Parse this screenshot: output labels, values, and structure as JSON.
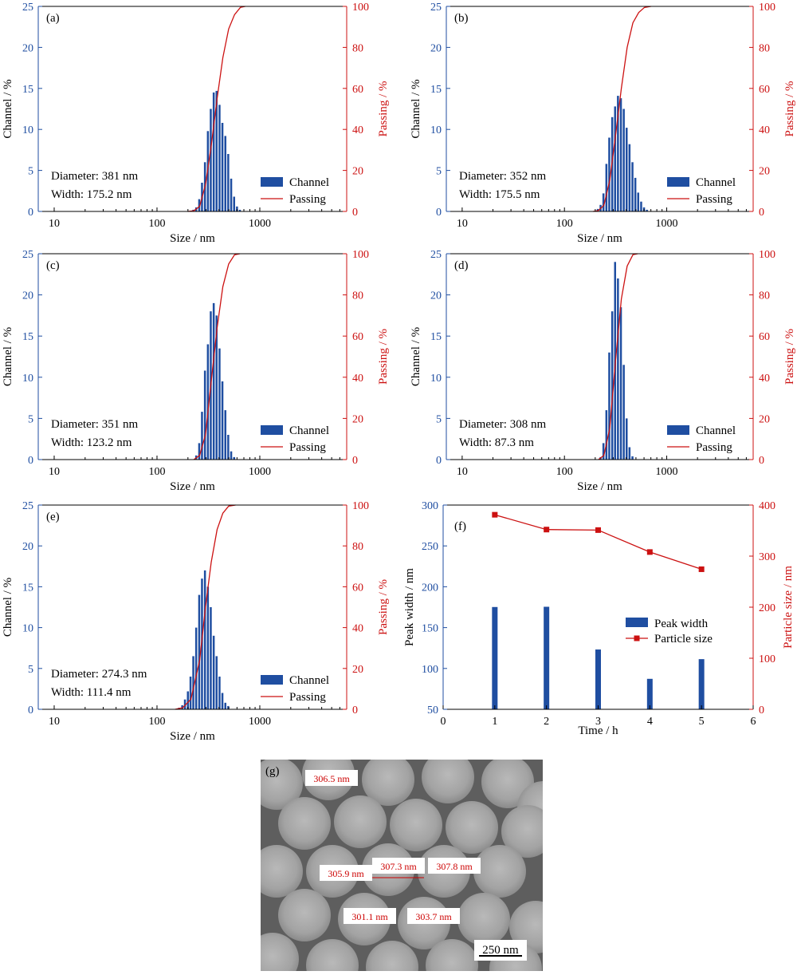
{
  "colors": {
    "channel": "#1f4ea1",
    "passing": "#cc1111",
    "axis_left": "#1f4ea1",
    "axis_right": "#cc1111"
  },
  "chart_data": [
    {
      "type": "bar+line",
      "panel_label": "(a)",
      "x_scale": "log",
      "xlabel": "Size / nm",
      "ylabel_left": "Channel / %",
      "ylabel_right": "Passing / %",
      "xticks": [
        "10",
        "100",
        "1000"
      ],
      "ylim_left": [
        0,
        25
      ],
      "yticks_left": [
        "0",
        "5",
        "10",
        "15",
        "20",
        "25"
      ],
      "ylim_right": [
        0,
        100
      ],
      "yticks_right": [
        "0",
        "20",
        "40",
        "60",
        "80",
        "100"
      ],
      "annotations": [
        "Diameter: 381 nm",
        "Width: 175.2 nm"
      ],
      "legend": [
        "Channel",
        "Passing"
      ],
      "channel": {
        "sizes": [
          228,
          243,
          260,
          277,
          296,
          316,
          337,
          360,
          384,
          410,
          437,
          467,
          498,
          532,
          568,
          606,
          647
        ],
        "values": [
          0.2,
          0.5,
          1.5,
          3.5,
          6.0,
          9.8,
          12.5,
          14.5,
          14.7,
          13.0,
          10.8,
          9.2,
          7.0,
          4.0,
          1.8,
          0.6,
          0.2
        ]
      },
      "passing": {
        "sizes": [
          200,
          228,
          260,
          296,
          337,
          384,
          437,
          498,
          568,
          647,
          720
        ],
        "values": [
          0,
          0.3,
          2.5,
          13,
          32,
          55,
          75,
          89,
          96,
          99.5,
          100
        ]
      }
    },
    {
      "type": "bar+line",
      "panel_label": "(b)",
      "x_scale": "log",
      "xlabel": "Size / nm",
      "ylabel_left": "Channel / %",
      "ylabel_right": "Passing / %",
      "xticks": [
        "10",
        "100",
        "1000"
      ],
      "ylim_left": [
        0,
        25
      ],
      "yticks_left": [
        "0",
        "5",
        "10",
        "15",
        "20",
        "25"
      ],
      "ylim_right": [
        0,
        100
      ],
      "yticks_right": [
        "0",
        "20",
        "40",
        "60",
        "80",
        "100"
      ],
      "annotations": [
        "Diameter: 352 nm",
        "Width: 175.5 nm"
      ],
      "legend": [
        "Channel",
        "Passing"
      ],
      "channel": {
        "sizes": [
          214,
          228,
          243,
          260,
          277,
          296,
          316,
          337,
          360,
          384,
          410,
          437,
          467,
          498,
          532,
          568,
          606,
          647
        ],
        "values": [
          0.3,
          0.8,
          2.2,
          5.8,
          9.0,
          11.5,
          12.8,
          14.1,
          13.8,
          12.5,
          10.2,
          8.2,
          6.0,
          4.1,
          2.3,
          1.2,
          0.5,
          0.2
        ]
      },
      "passing": {
        "sizes": [
          190,
          214,
          243,
          277,
          316,
          360,
          410,
          467,
          532,
          606,
          700
        ],
        "values": [
          0,
          0.4,
          3,
          15,
          37,
          60,
          80,
          92,
          97,
          99.5,
          100
        ]
      }
    },
    {
      "type": "bar+line",
      "panel_label": "(c)",
      "x_scale": "log",
      "xlabel": "Size / nm",
      "ylabel_left": "Channel / %",
      "ylabel_right": "Passing / %",
      "xticks": [
        "10",
        "100",
        "1000"
      ],
      "ylim_left": [
        0,
        25
      ],
      "yticks_left": [
        "0",
        "5",
        "10",
        "15",
        "20",
        "25"
      ],
      "ylim_right": [
        0,
        100
      ],
      "yticks_right": [
        "0",
        "20",
        "40",
        "60",
        "80",
        "100"
      ],
      "annotations": [
        "Diameter: 351 nm",
        "Width: 123.2 nm"
      ],
      "legend": [
        "Channel",
        "Passing"
      ],
      "channel": {
        "sizes": [
          243,
          260,
          277,
          296,
          316,
          337,
          360,
          384,
          410,
          437,
          467,
          498,
          532,
          568
        ],
        "values": [
          0.5,
          2.0,
          5.8,
          10.8,
          14.0,
          18.0,
          19.0,
          17.5,
          13.5,
          9.5,
          6.0,
          3.0,
          1.0,
          0.3
        ]
      },
      "passing": {
        "sizes": [
          228,
          260,
          296,
          337,
          384,
          437,
          498,
          568,
          640
        ],
        "values": [
          0,
          2,
          12,
          38,
          64,
          84,
          95,
          99.5,
          100
        ]
      }
    },
    {
      "type": "bar+line",
      "panel_label": "(d)",
      "x_scale": "log",
      "xlabel": "Size / nm",
      "ylabel_left": "Channel / %",
      "ylabel_right": "Passing / %",
      "xticks": [
        "10",
        "100",
        "1000"
      ],
      "ylim_left": [
        0,
        25
      ],
      "yticks_left": [
        "0",
        "5",
        "10",
        "15",
        "20",
        "25"
      ],
      "ylim_right": [
        0,
        100
      ],
      "yticks_right": [
        "0",
        "20",
        "40",
        "60",
        "80",
        "100"
      ],
      "annotations": [
        "Diameter: 308 nm",
        "Width: 87.3 nm"
      ],
      "legend": [
        "Channel",
        "Passing"
      ],
      "channel": {
        "sizes": [
          228,
          243,
          260,
          277,
          296,
          316,
          337,
          360,
          384,
          410,
          437,
          467
        ],
        "values": [
          0.3,
          2.0,
          6.0,
          13.0,
          18.0,
          24.0,
          22.0,
          18.5,
          11.5,
          5.0,
          1.5,
          0.4
        ]
      },
      "passing": {
        "sizes": [
          215,
          243,
          277,
          316,
          360,
          410,
          467,
          520
        ],
        "values": [
          0,
          2,
          15,
          48,
          78,
          94,
          99.5,
          100
        ]
      }
    },
    {
      "type": "bar+line",
      "panel_label": "(e)",
      "x_scale": "log",
      "xlabel": "Size / nm",
      "ylabel_left": "Channel / %",
      "ylabel_right": "Passing / %",
      "xticks": [
        "10",
        "100",
        "1000"
      ],
      "ylim_left": [
        0,
        25
      ],
      "yticks_left": [
        "0",
        "5",
        "10",
        "15",
        "20",
        "25"
      ],
      "ylim_right": [
        0,
        100
      ],
      "yticks_right": [
        "0",
        "20",
        "40",
        "60",
        "80",
        "100"
      ],
      "annotations": [
        "Diameter: 274.3 nm",
        "Width: 111.4 nm"
      ],
      "legend": [
        "Channel",
        "Passing"
      ],
      "channel": {
        "sizes": [
          166,
          178,
          189,
          202,
          214,
          228,
          243,
          260,
          277,
          296,
          316,
          337,
          360,
          384,
          410,
          437,
          467,
          498
        ],
        "values": [
          0.2,
          0.5,
          1.2,
          2.2,
          4.0,
          6.5,
          10.0,
          14.0,
          16.0,
          17.0,
          15.0,
          12.5,
          9.0,
          6.5,
          4.0,
          2.0,
          0.8,
          0.4
        ]
      },
      "passing": {
        "sizes": [
          150,
          178,
          214,
          260,
          296,
          337,
          384,
          437,
          498,
          580
        ],
        "values": [
          0,
          0.8,
          5,
          24,
          50,
          72,
          88,
          96,
          99.5,
          100
        ]
      }
    },
    {
      "type": "bar+line",
      "panel_label": "(f)",
      "xlabel": "Time / h",
      "ylabel_left": "Peak width / nm",
      "ylabel_right": "Particle size / nm",
      "xlim": [
        0,
        6
      ],
      "xticks": [
        "0",
        "1",
        "2",
        "3",
        "4",
        "5",
        "6"
      ],
      "ylim_left": [
        50,
        300
      ],
      "yticks_left": [
        "50",
        "100",
        "150",
        "200",
        "250",
        "300"
      ],
      "ylim_right": [
        0,
        400
      ],
      "yticks_right": [
        "0",
        "100",
        "200",
        "300",
        "400"
      ],
      "legend": [
        "Peak width",
        "Particle size"
      ],
      "x": [
        1,
        2,
        3,
        4,
        5
      ],
      "series": [
        {
          "name": "Peak width",
          "axis": "left",
          "values": [
            175.2,
            175.5,
            123.2,
            87.3,
            111.4
          ]
        },
        {
          "name": "Particle size",
          "axis": "right",
          "values": [
            381,
            352,
            351,
            308,
            274.3
          ]
        }
      ]
    }
  ],
  "sem_image": {
    "panel_label": "(g)",
    "measurements": [
      "306.5 nm",
      "305.9 nm",
      "307.3 nm",
      "307.8 nm",
      "301.1 nm",
      "303.7 nm"
    ],
    "scale_bar": "250 nm"
  }
}
